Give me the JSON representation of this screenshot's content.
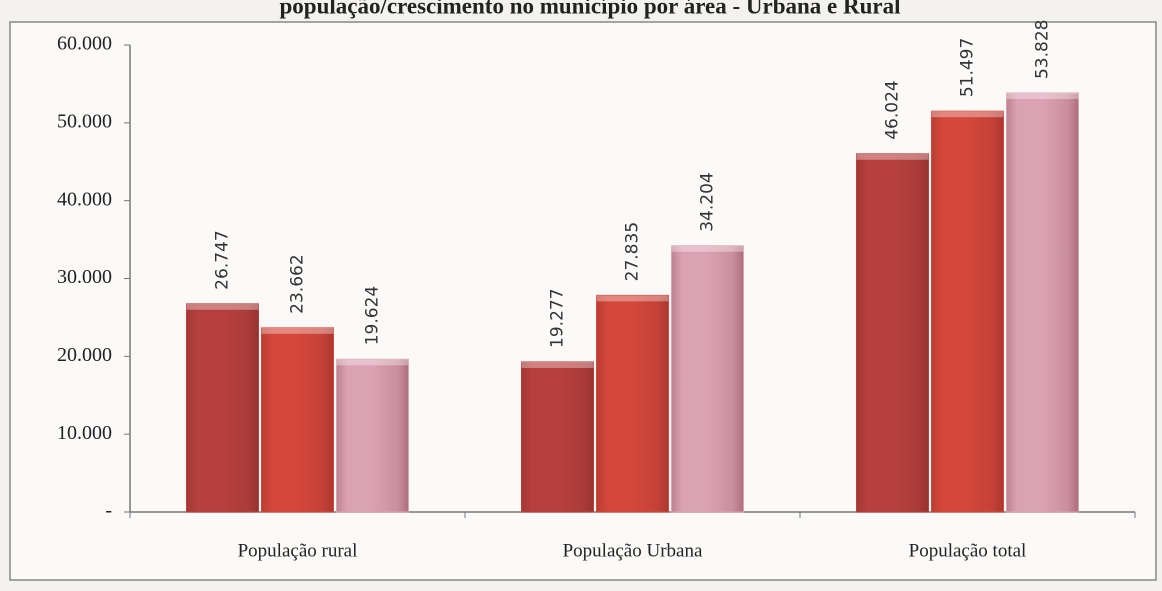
{
  "chart_data": {
    "type": "bar",
    "title": "população/crescimento no município por área - Urbana e Rural",
    "categories": [
      "População rural",
      "População Urbana",
      "População total"
    ],
    "series": [
      {
        "color": "#b6403d",
        "values": [
          26747,
          19277,
          46024
        ],
        "value_labels": [
          "26.747",
          "19.277",
          "46.024"
        ]
      },
      {
        "color": "#d4473b",
        "values": [
          23662,
          27835,
          51497
        ],
        "value_labels": [
          "23.662",
          "27.835",
          "51.497"
        ]
      },
      {
        "color": "#dba2b4",
        "values": [
          19624,
          34204,
          53828
        ],
        "value_labels": [
          "19.624",
          "34.204",
          "53.828"
        ]
      }
    ],
    "ylim": [
      0,
      60000
    ],
    "yticks": [
      {
        "value": 0,
        "label": "-"
      },
      {
        "value": 10000,
        "label": "10.000"
      },
      {
        "value": 20000,
        "label": "20.000"
      },
      {
        "value": 30000,
        "label": "30.000"
      },
      {
        "value": 40000,
        "label": "40.000"
      },
      {
        "value": 50000,
        "label": "50.000"
      },
      {
        "value": 60000,
        "label": "60.000"
      }
    ],
    "grid": false
  }
}
